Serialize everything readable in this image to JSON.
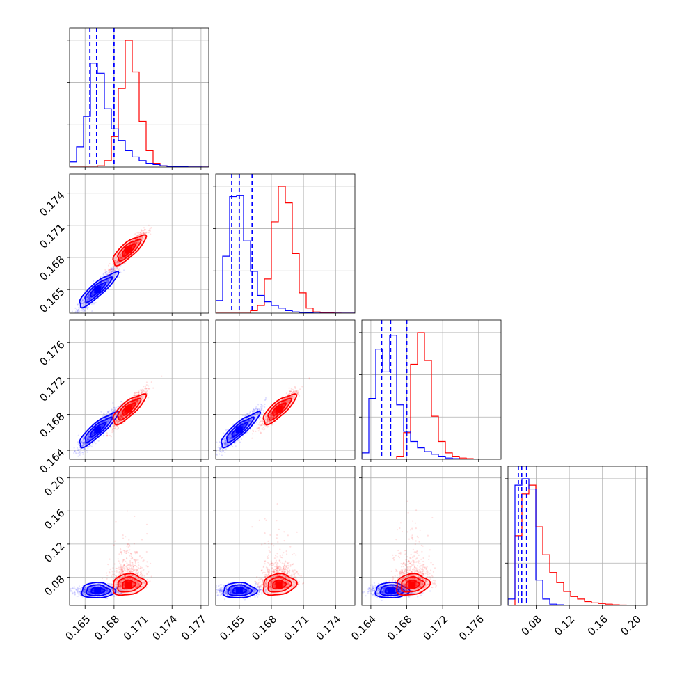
{
  "colors": {
    "series_a": "#0000ff",
    "series_b": "#ff0000",
    "grid": "#b0b0b0"
  },
  "chart_data": {
    "type": "corner",
    "parameters": 4,
    "grid": true,
    "legend": "none",
    "series": [
      {
        "color": "#0000ff",
        "mean": [
          0.1663,
          0.165,
          0.1663,
          0.064
        ],
        "sd": [
          0.001,
          0.001,
          0.0012,
          0.004
        ],
        "corr_01": 0.95,
        "corr_02": 0.95,
        "corr_12": 0.95,
        "quantiles": [
          [
            0.1655,
            0.1662,
            0.168
          ],
          [
            0.1643,
            0.165,
            0.1662
          ],
          [
            0.1652,
            0.1662,
            0.168
          ],
          [
            0.0585,
            0.0625,
            0.0685
          ]
        ]
      },
      {
        "color": "#ff0000",
        "mean": [
          0.1695,
          0.1687,
          0.1686,
          0.071
        ],
        "sd": [
          0.0008,
          0.0008,
          0.001,
          0.01
        ],
        "corr_01": 0.95,
        "corr_02": 0.95,
        "corr_12": 0.95
      }
    ],
    "ranges": [
      [
        0.1634,
        0.1778
      ],
      [
        0.1628,
        0.1758
      ],
      [
        0.163,
        0.1785
      ],
      [
        0.046,
        0.214
      ]
    ],
    "tick_values": [
      [
        0.165,
        0.168,
        0.171,
        0.174,
        0.177
      ],
      [
        0.165,
        0.168,
        0.171,
        0.174
      ],
      [
        0.164,
        0.168,
        0.172,
        0.176
      ],
      [
        0.08,
        0.12,
        0.16,
        0.2
      ]
    ],
    "tick_labels": [
      [
        "0.165",
        "0.168",
        "0.171",
        "0.174",
        "0.177"
      ],
      [
        "0.165",
        "0.168",
        "0.171",
        "0.174"
      ],
      [
        "0.164",
        "0.168",
        "0.172",
        "0.176"
      ],
      [
        "0.08",
        "0.12",
        "0.16",
        "0.20"
      ]
    ],
    "left_tick_labels": {
      "row1": [
        "0.165",
        "0.168",
        "0.171",
        "0.174"
      ],
      "row2": [
        "0.164",
        "0.168",
        "0.172",
        "0.176"
      ],
      "row3": [
        "0.08",
        "0.12",
        "0.16",
        "0.20"
      ]
    },
    "histograms": {
      "p0": {
        "series_a": [
          0.04,
          0.16,
          0.4,
          0.82,
          0.74,
          0.46,
          0.3,
          0.21,
          0.13,
          0.08,
          0.05,
          0.03,
          0.02,
          0.01,
          0.005,
          0.003,
          0.002,
          0.001,
          0.001,
          0.0
        ],
        "series_b": [
          0.0,
          0.0,
          0.0,
          0.0,
          0.01,
          0.05,
          0.24,
          0.62,
          1.0,
          0.75,
          0.36,
          0.13,
          0.03,
          0.01,
          0.005,
          0.002,
          0.001,
          0.0,
          0.0,
          0.0
        ]
      },
      "p1": {
        "series_a": [
          0.1,
          0.45,
          0.92,
          0.93,
          0.57,
          0.33,
          0.14,
          0.09,
          0.06,
          0.04,
          0.02,
          0.01,
          0.005,
          0.002,
          0.001,
          0.0,
          0.0,
          0.0,
          0.0,
          0.0
        ],
        "series_b": [
          0.0,
          0.0,
          0.0,
          0.0,
          0.0,
          0.02,
          0.06,
          0.27,
          0.72,
          1.0,
          0.87,
          0.47,
          0.16,
          0.04,
          0.01,
          0.005,
          0.002,
          0.001,
          0.0,
          0.0
        ]
      },
      "p2": {
        "series_a": [
          0.05,
          0.48,
          0.87,
          0.69,
          0.98,
          0.43,
          0.22,
          0.14,
          0.09,
          0.06,
          0.04,
          0.02,
          0.01,
          0.005,
          0.002,
          0.001,
          0.0,
          0.0,
          0.0,
          0.0
        ],
        "series_b": [
          0.0,
          0.0,
          0.0,
          0.0,
          0.0,
          0.02,
          0.21,
          0.75,
          1.0,
          0.78,
          0.34,
          0.14,
          0.05,
          0.02,
          0.01,
          0.005,
          0.002,
          0.001,
          0.0,
          0.0
        ]
      },
      "p3": {
        "series_a": [
          0.05,
          0.95,
          1.0,
          0.92,
          0.2,
          0.05,
          0.01,
          0.005,
          0.0,
          0.0,
          0.0,
          0.0,
          0.0,
          0.0,
          0.0,
          0.0,
          0.0,
          0.0,
          0.0,
          0.0
        ],
        "series_b": [
          0.0,
          0.55,
          0.88,
          0.95,
          0.62,
          0.4,
          0.26,
          0.18,
          0.11,
          0.07,
          0.05,
          0.03,
          0.02,
          0.015,
          0.01,
          0.005,
          0.003,
          0.002,
          0.001,
          0.0
        ]
      }
    }
  }
}
